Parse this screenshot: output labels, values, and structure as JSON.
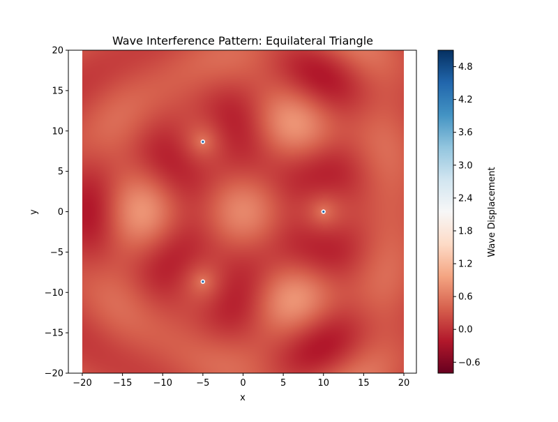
{
  "chart_data": {
    "type": "heatmap",
    "title": "Wave Interference Pattern: Equilateral Triangle",
    "xlabel": "x",
    "ylabel": "y",
    "colorbar_label": "Wave Displacement",
    "xlim": [
      -20,
      20
    ],
    "ylim": [
      -20,
      20
    ],
    "x_ticks": [
      -20,
      -15,
      -10,
      -5,
      0,
      5,
      10,
      15,
      20
    ],
    "y_ticks": [
      -20,
      -15,
      -10,
      -5,
      0,
      5,
      10,
      15,
      20
    ],
    "x_tick_labels": [
      "−20",
      "−15",
      "−10",
      "−5",
      "0",
      "5",
      "10",
      "15",
      "20"
    ],
    "y_tick_labels": [
      "−20",
      "−15",
      "−10",
      "−5",
      "0",
      "5",
      "10",
      "15",
      "20"
    ],
    "colorbar_range": [
      -0.8,
      5.1
    ],
    "colorbar_ticks": [
      -0.6,
      0.0,
      0.6,
      1.2,
      1.8,
      2.4,
      3.0,
      3.6,
      4.2,
      4.8
    ],
    "colorbar_tick_labels": [
      "−0.6",
      "0.0",
      "0.6",
      "1.2",
      "1.8",
      "2.4",
      "3.0",
      "3.6",
      "4.2",
      "4.8"
    ],
    "colormap": "RdBu",
    "colormap_stops": [
      "#67001f",
      "#b2182b",
      "#d6604d",
      "#f4a582",
      "#fddbc7",
      "#f7f7f7",
      "#d1e5f0",
      "#92c5de",
      "#4393c3",
      "#2166ac",
      "#053061"
    ],
    "sources": [
      {
        "x": 10.0,
        "y": 0.0
      },
      {
        "x": -5.0,
        "y": 8.66
      },
      {
        "x": -5.0,
        "y": -8.66
      }
    ],
    "source_marker_color": "#2166ac",
    "grid": false
  }
}
